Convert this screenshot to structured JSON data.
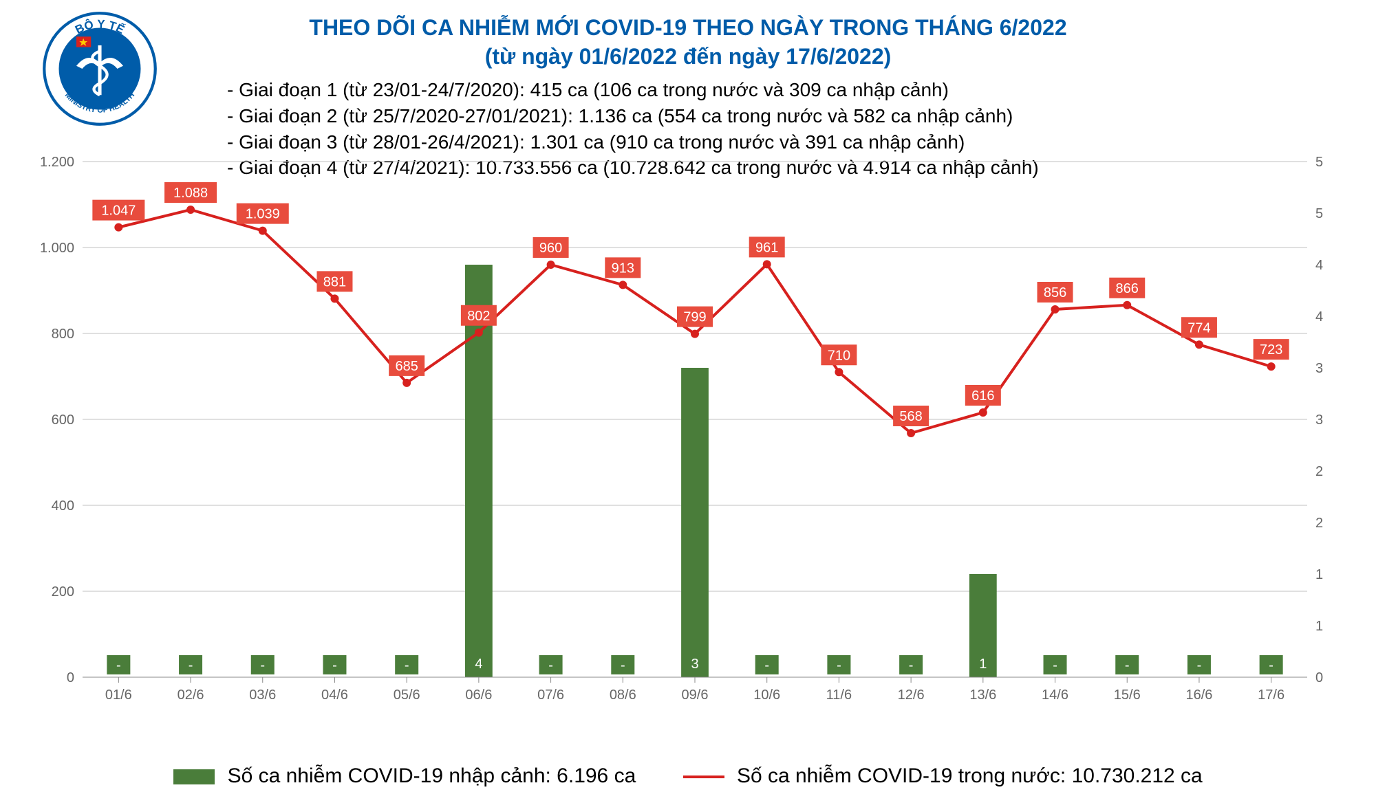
{
  "title": {
    "line1": "THEO DÕI CA NHIỄM MỚI COVID-19 THEO NGÀY TRONG THÁNG 6/2022",
    "line2": "(từ ngày 01/6/2022 đến ngày 17/6/2022)",
    "color": "#005ca9",
    "fontsize": 32
  },
  "logo": {
    "outer_top": "BỘ Y TẾ",
    "outer_bottom": "MINISTRY OF HEALTH",
    "ring_color": "#005ca9",
    "inner_color": "#005ca9",
    "star_color": "#ffcc00",
    "flag_bg": "#d7211e"
  },
  "notes": {
    "n1": "- Giai đoạn 1 (từ 23/01-24/7/2020): 415 ca (106 ca trong nước và 309 ca nhập cảnh)",
    "n2": "- Giai đoạn 2 (từ 25/7/2020-27/01/2021): 1.136 ca (554 ca trong nước và 582 ca nhập cảnh)",
    "n3": "- Giai đoạn 3 (từ 28/01-26/4/2021): 1.301 ca (910 ca trong nước và 391 ca nhập cảnh)",
    "n4": "- Giai đoạn 4 (từ 27/4/2021): 10.733.556 ca (10.728.642 ca trong nước và 4.914 ca nhập cảnh)"
  },
  "chart": {
    "type": "combo-bar-line",
    "background_color": "#ffffff",
    "grid_color": "#c0c0c0",
    "axis_color": "#888888",
    "categories": [
      "01/6",
      "02/6",
      "03/6",
      "04/6",
      "05/6",
      "06/6",
      "07/6",
      "08/6",
      "09/6",
      "10/6",
      "11/6",
      "12/6",
      "13/6",
      "14/6",
      "15/6",
      "16/6",
      "17/6"
    ],
    "y_left": {
      "min": 0,
      "max": 1200,
      "step": 200,
      "fontsize": 20,
      "color": "#666666",
      "tick_labels": [
        "0",
        "200",
        "400",
        "600",
        "800",
        "1.000",
        "1.200"
      ]
    },
    "y_right": {
      "min": 0,
      "max": 5,
      "step": 1,
      "fontsize": 20,
      "color": "#666666",
      "tick_labels": [
        "0",
        "1",
        "1",
        "2",
        "2",
        "3",
        "3",
        "4",
        "4",
        "5",
        "5"
      ]
    },
    "right_tick_positions": [
      0,
      120,
      240,
      360,
      480,
      600,
      720,
      840,
      960,
      1080,
      1200
    ],
    "x_tick_fontsize": 20,
    "bar": {
      "color": "#4a7d3a",
      "width_ratio": 0.38,
      "label_color": "#ffffff",
      "label_bg": "#4a7d3a",
      "label_fontsize": 20,
      "series_map_to": "right",
      "values": [
        null,
        null,
        null,
        null,
        null,
        4,
        null,
        null,
        3,
        null,
        null,
        null,
        1,
        null,
        null,
        null,
        null
      ],
      "display_labels": [
        "-",
        "-",
        "-",
        "-",
        "-",
        "4",
        "-",
        "-",
        "3",
        "-",
        "-",
        "-",
        "1",
        "-",
        "-",
        "-",
        "-"
      ]
    },
    "line": {
      "color": "#d7211e",
      "width": 4,
      "marker": "circle",
      "marker_size": 6,
      "label_color": "#ffffff",
      "label_bg": "#e84c3d",
      "label_fontsize": 20,
      "values": [
        1047,
        1088,
        1039,
        881,
        685,
        802,
        960,
        913,
        799,
        961,
        710,
        568,
        616,
        856,
        866,
        774,
        723
      ],
      "display_labels": [
        "1.047",
        "1.088",
        "1.039",
        "881",
        "685",
        "802",
        "960",
        "913",
        "799",
        "961",
        "710",
        "568",
        "616",
        "856",
        "866",
        "774",
        "723"
      ]
    }
  },
  "legend": {
    "bar_label": "Số ca nhiễm COVID-19 nhập cảnh: 6.196 ca",
    "line_label": "Số ca nhiễm COVID-19 trong nước: 10.730.212 ca",
    "text_color": "#555555"
  }
}
